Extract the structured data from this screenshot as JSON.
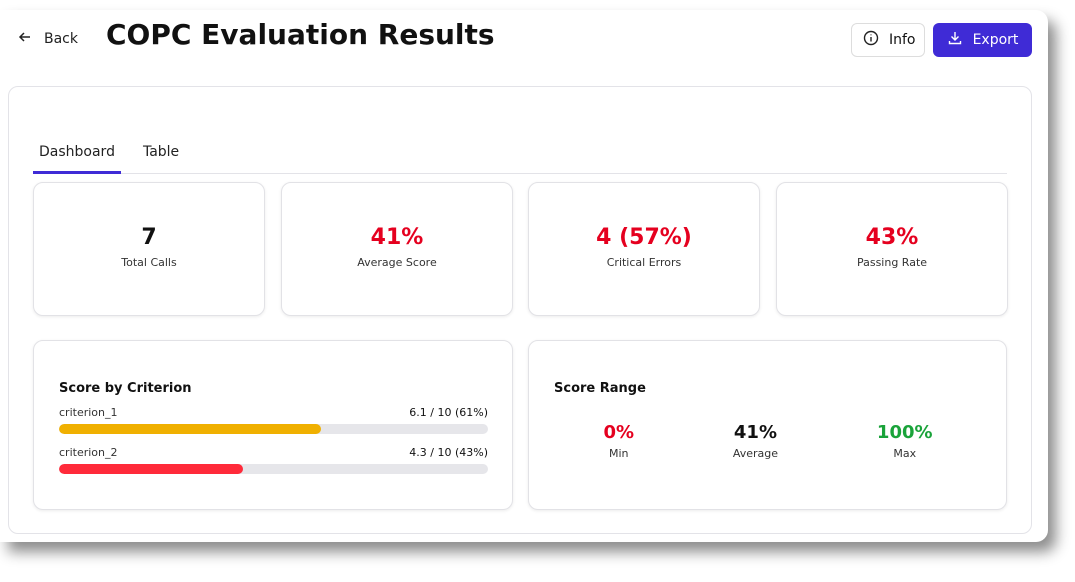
{
  "header": {
    "back_label": "Back",
    "title": "COPC Evaluation Results",
    "info_label": "Info",
    "export_label": "Export",
    "accent": "#3f2bd6"
  },
  "tabs": [
    {
      "label": "Dashboard",
      "active": true
    },
    {
      "label": "Table",
      "active": false
    }
  ],
  "stats": [
    {
      "value": "7",
      "label": "Total Calls",
      "color": "#111111"
    },
    {
      "value": "41%",
      "label": "Average Score",
      "color": "#e5001f"
    },
    {
      "value": "4 (57%)",
      "label": "Critical Errors",
      "color": "#e5001f"
    },
    {
      "value": "43%",
      "label": "Passing Rate",
      "color": "#e5001f"
    }
  ],
  "criteria": {
    "title": "Score by Criterion",
    "items": [
      {
        "name": "criterion_1",
        "score": "6.1 / 10 (61%)",
        "percent": 61,
        "color": "#f0b000"
      },
      {
        "name": "criterion_2",
        "score": "4.3 / 10 (43%)",
        "percent": 43,
        "color": "#ff2a3a"
      }
    ]
  },
  "range": {
    "title": "Score Range",
    "items": [
      {
        "value": "0%",
        "label": "Min",
        "color": "#e5001f"
      },
      {
        "value": "41%",
        "label": "Average",
        "color": "#111111"
      },
      {
        "value": "100%",
        "label": "Max",
        "color": "#1aa33a"
      }
    ]
  }
}
